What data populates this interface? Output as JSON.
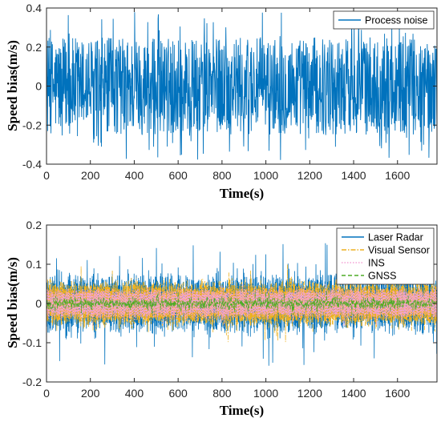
{
  "figure": {
    "layout": "two stacked time-series subplots"
  },
  "chart_data": [
    {
      "type": "line",
      "xlabel": "Time(s)",
      "ylabel": "Speed bias(m/s)",
      "xlim": [
        0,
        1780
      ],
      "ylim": [
        -0.4,
        0.4
      ],
      "xticks": [
        0,
        200,
        400,
        600,
        800,
        1000,
        1200,
        1400,
        1600
      ],
      "xtick_labels": [
        "0",
        "200",
        "400",
        "600",
        "800",
        "1000",
        "1200",
        "1400",
        "1600"
      ],
      "yticks": [
        0.4,
        0.2,
        0,
        -0.2,
        -0.4
      ],
      "ytick_labels": [
        "0.4",
        "0.2",
        "0",
        "-0.2",
        "-0.4"
      ],
      "grid": false,
      "legend_position": "top-right",
      "series": [
        {
          "name": "Process noise",
          "color": "#0072BD",
          "style": "solid",
          "description": "zero-mean noise, dense band mostly within ±0.25 with peaks reaching about ±0.38",
          "mean": 0,
          "typical_amplitude": 0.25,
          "peak_amplitude": 0.38
        }
      ]
    },
    {
      "type": "line",
      "xlabel": "Time(s)",
      "ylabel": "Speed bias(m/s)",
      "xlim": [
        0,
        1780
      ],
      "ylim": [
        -0.2,
        0.2
      ],
      "xticks": [
        0,
        200,
        400,
        600,
        800,
        1000,
        1200,
        1400,
        1600
      ],
      "xtick_labels": [
        "0",
        "200",
        "400",
        "600",
        "800",
        "1000",
        "1200",
        "1400",
        "1600"
      ],
      "yticks": [
        0.2,
        0.1,
        0,
        -0.1,
        -0.2
      ],
      "ytick_labels": [
        "0.2",
        "0.1",
        "0",
        "-0.1",
        "-0.2"
      ],
      "grid": false,
      "legend_position": "top-right",
      "series": [
        {
          "name": "Laser Radar",
          "color": "#0072BD",
          "style": "solid",
          "band_center": 0.05,
          "band_spread": 0.028,
          "peak_amplitude": 0.16
        },
        {
          "name": "Visual Sensor",
          "color": "#EDB120",
          "style": "dashdot",
          "band_center": 0.042,
          "band_spread": 0.016,
          "peak_amplitude": 0.1
        },
        {
          "name": "INS",
          "color": "#F4A3D6",
          "style": "dotted",
          "band_center": 0.028,
          "band_spread": 0.01,
          "peak_amplitude": 0.06
        },
        {
          "name": "GNSS",
          "color": "#4DAC26",
          "style": "dashed",
          "band_center": 0,
          "band_spread": 0.012,
          "peak_amplitude": 0.03
        }
      ]
    }
  ]
}
